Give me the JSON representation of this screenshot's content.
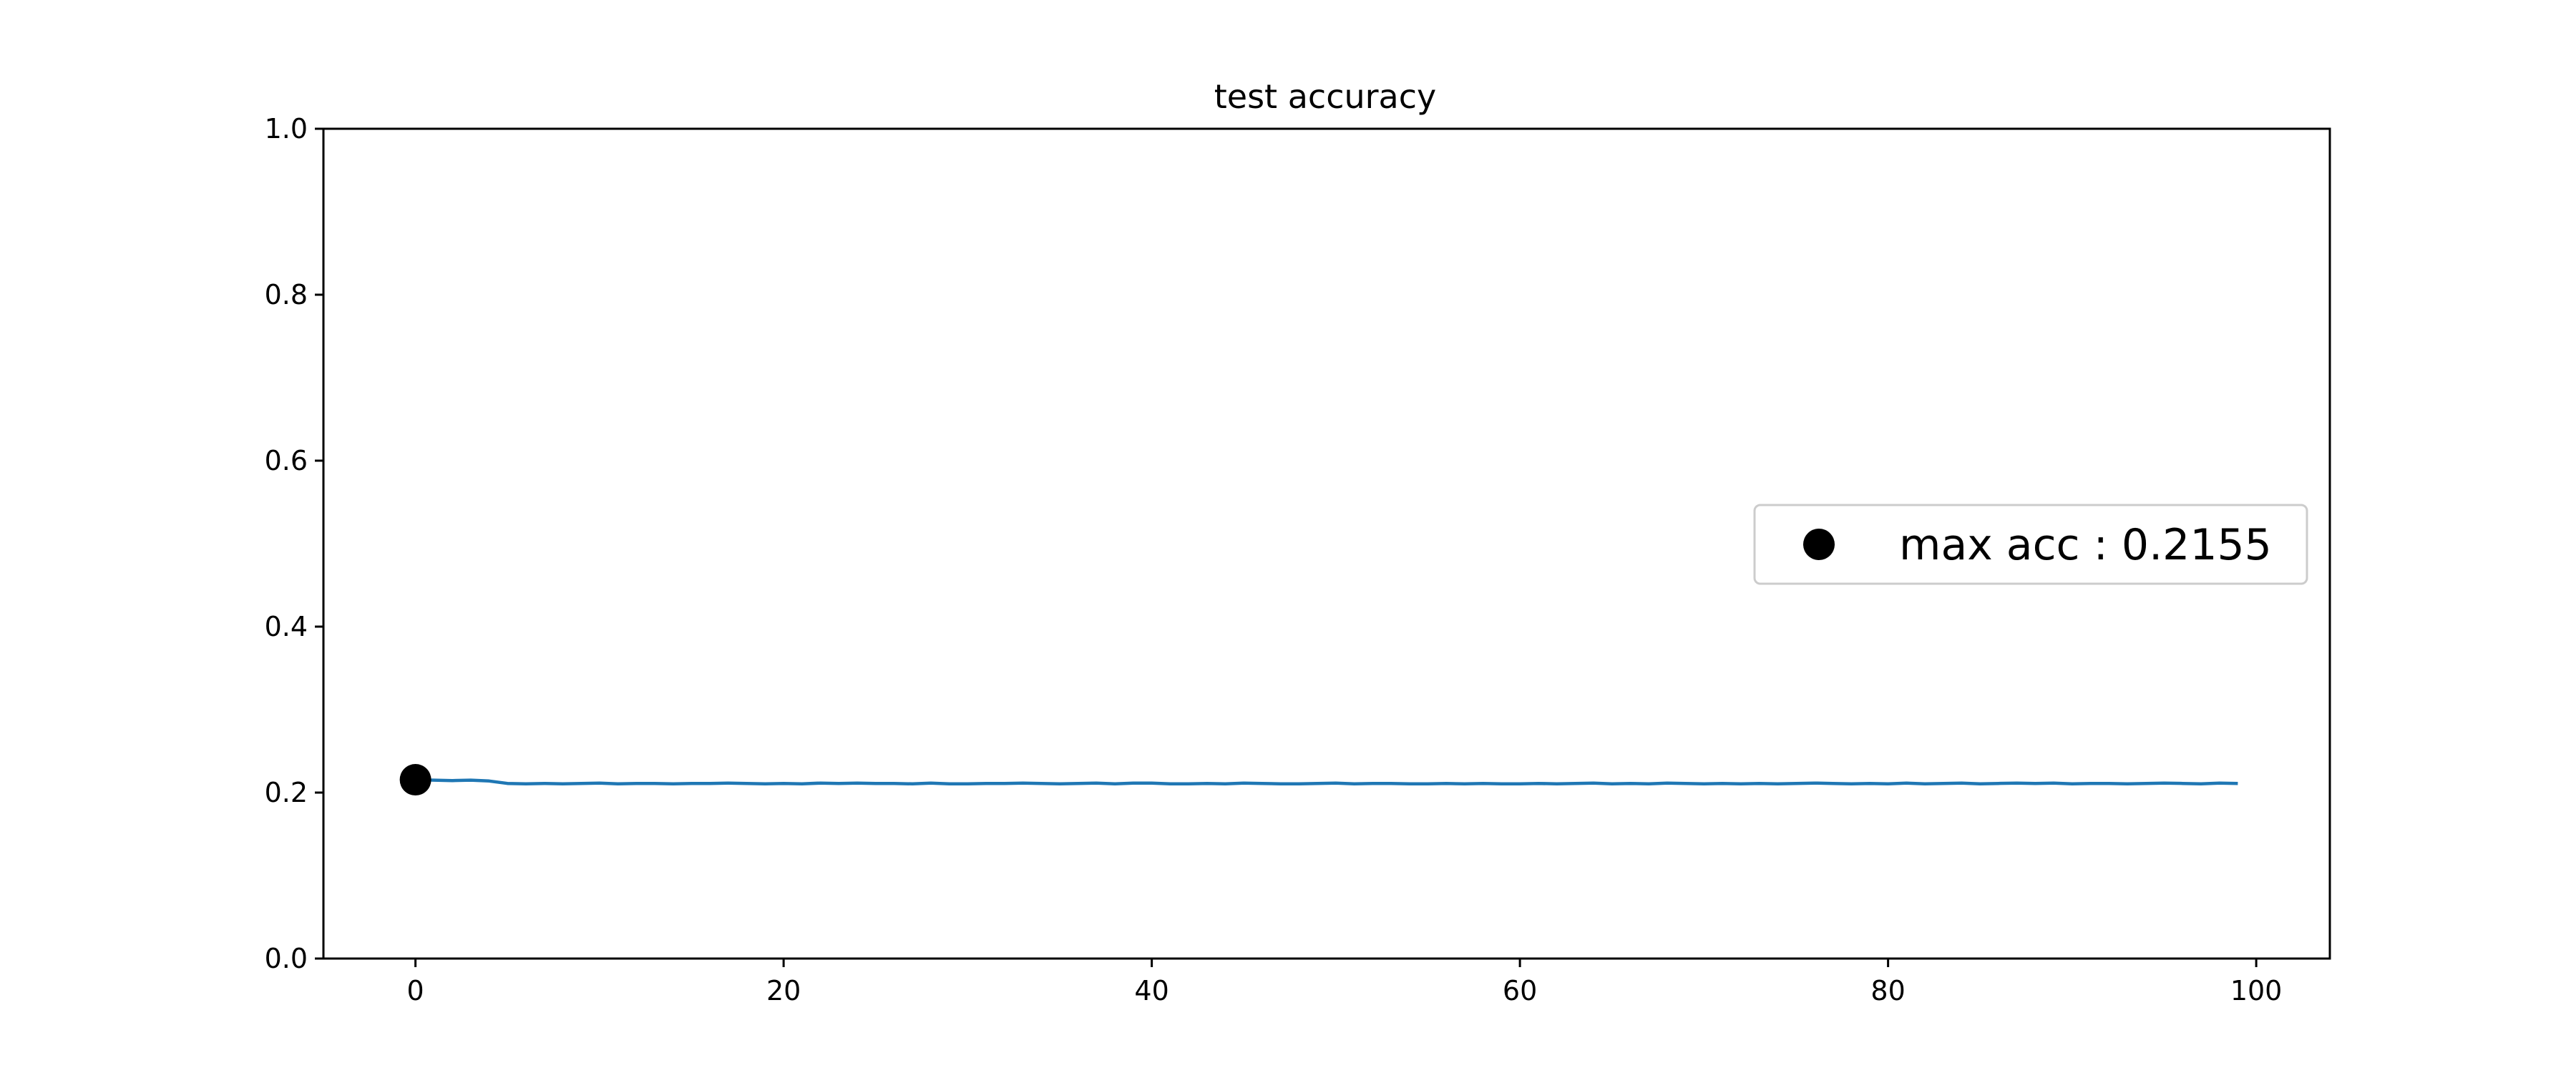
{
  "chart_data": {
    "type": "line",
    "title": "test accuracy",
    "xlabel": "",
    "ylabel": "",
    "xlim": [
      -5,
      104
    ],
    "ylim": [
      0.0,
      1.0
    ],
    "x_ticks": [
      0,
      20,
      40,
      60,
      80,
      100
    ],
    "y_ticks": [
      0.0,
      0.2,
      0.4,
      0.6,
      0.8,
      1.0
    ],
    "x_tick_labels": [
      "0",
      "20",
      "40",
      "60",
      "80",
      "100"
    ],
    "y_tick_labels": [
      "0.0",
      "0.2",
      "0.4",
      "0.6",
      "0.8",
      "1.0"
    ],
    "grid": false,
    "legend_position": "right",
    "series": [
      {
        "color": "#1f77b4",
        "x": [
          0,
          1,
          2,
          3,
          4,
          5,
          6,
          7,
          8,
          9,
          10,
          11,
          12,
          13,
          14,
          15,
          16,
          17,
          18,
          19,
          20,
          21,
          22,
          23,
          24,
          25,
          26,
          27,
          28,
          29,
          30,
          31,
          32,
          33,
          34,
          35,
          36,
          37,
          38,
          39,
          40,
          41,
          42,
          43,
          44,
          45,
          46,
          47,
          48,
          49,
          50,
          51,
          52,
          53,
          54,
          55,
          56,
          57,
          58,
          59,
          60,
          61,
          62,
          63,
          64,
          65,
          66,
          67,
          68,
          69,
          70,
          71,
          72,
          73,
          74,
          75,
          76,
          77,
          78,
          79,
          80,
          81,
          82,
          83,
          84,
          85,
          86,
          87,
          88,
          89,
          90,
          91,
          92,
          93,
          94,
          95,
          96,
          97,
          98,
          99
        ],
        "y": [
          0.2155,
          0.215,
          0.2145,
          0.215,
          0.214,
          0.211,
          0.2105,
          0.211,
          0.2105,
          0.211,
          0.2115,
          0.2105,
          0.211,
          0.211,
          0.2105,
          0.211,
          0.211,
          0.2115,
          0.211,
          0.2105,
          0.211,
          0.2105,
          0.2115,
          0.211,
          0.2115,
          0.211,
          0.211,
          0.2105,
          0.2115,
          0.2105,
          0.2105,
          0.211,
          0.211,
          0.2115,
          0.211,
          0.2105,
          0.211,
          0.2115,
          0.2105,
          0.2115,
          0.2115,
          0.2105,
          0.2105,
          0.211,
          0.2105,
          0.2115,
          0.211,
          0.2105,
          0.2105,
          0.211,
          0.2115,
          0.2105,
          0.211,
          0.211,
          0.2105,
          0.2105,
          0.211,
          0.2105,
          0.211,
          0.2105,
          0.2105,
          0.211,
          0.2105,
          0.211,
          0.2115,
          0.2105,
          0.211,
          0.2105,
          0.2115,
          0.211,
          0.2105,
          0.211,
          0.2105,
          0.211,
          0.2105,
          0.211,
          0.2115,
          0.211,
          0.2105,
          0.211,
          0.2105,
          0.2115,
          0.2105,
          0.211,
          0.2115,
          0.2105,
          0.211,
          0.2115,
          0.211,
          0.2115,
          0.2105,
          0.211,
          0.211,
          0.2105,
          0.211,
          0.2115,
          0.211,
          0.2105,
          0.2115,
          0.211
        ]
      },
      {
        "name": "max acc : 0.2155",
        "marker": "circle",
        "color": "#000000",
        "x": [
          0
        ],
        "y": [
          0.2155
        ]
      }
    ]
  }
}
